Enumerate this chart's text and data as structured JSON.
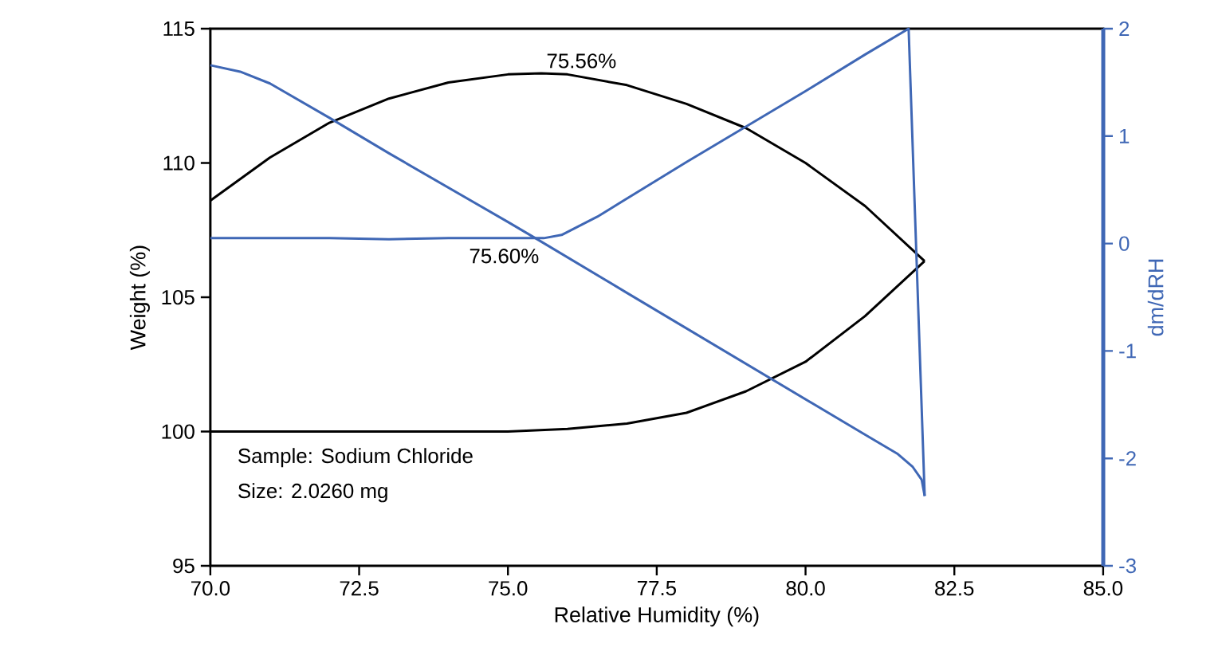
{
  "chart_data": {
    "type": "line",
    "xlabel": "Relative Humidity (%)",
    "ylabel": "Weight (%)",
    "y2label": "dm/dRH",
    "xlim": [
      70,
      85
    ],
    "xticks": [
      {
        "value": 70,
        "label": "70.0"
      },
      {
        "value": 72.5,
        "label": "72.5"
      },
      {
        "value": 75,
        "label": "75.0"
      },
      {
        "value": 77.5,
        "label": "77.5"
      },
      {
        "value": 80,
        "label": "80.0"
      },
      {
        "value": 82.5,
        "label": "82.5"
      },
      {
        "value": 85,
        "label": "85.0"
      }
    ],
    "ylim": [
      95,
      115
    ],
    "yticks": [
      95,
      100,
      105,
      110,
      115
    ],
    "y2lim": [
      -3,
      2
    ],
    "y2ticks": [
      -3,
      -2,
      -1,
      0,
      1,
      2
    ],
    "series": [
      {
        "color": "#000000",
        "x": [
          70,
          71,
          72,
          73,
          74,
          75,
          75.56,
          76,
          77,
          78,
          79,
          80,
          81,
          82
        ],
        "values": [
          108.6,
          110.2,
          111.5,
          112.4,
          113.0,
          113.3,
          113.34,
          113.3,
          112.9,
          112.2,
          111.3,
          110.0,
          108.4,
          106.35
        ]
      },
      {
        "color": "#000000",
        "x": [
          70,
          72,
          74,
          75,
          76,
          77,
          78,
          79,
          80,
          81,
          82
        ],
        "values": [
          100,
          100,
          100,
          100,
          100.1,
          100.3,
          100.7,
          101.5,
          102.6,
          104.3,
          106.35
        ]
      },
      {
        "color": "#3f67b5",
        "axis": "y2",
        "x": [
          70,
          70.5,
          71,
          72,
          73,
          74,
          75,
          75.46,
          77,
          79,
          81,
          81.55,
          81.8,
          81.95,
          82
        ],
        "values": [
          1.66,
          1.6,
          1.49,
          1.17,
          0.84,
          0.52,
          0.2,
          0.05,
          -0.46,
          -1.12,
          -1.78,
          -1.96,
          -2.08,
          -2.2,
          -2.35
        ]
      },
      {
        "color": "#3f67b5",
        "axis": "y2",
        "x": [
          70,
          72,
          73,
          74,
          75,
          75.6,
          75.9,
          76.5,
          78,
          79,
          80,
          81,
          81.73,
          82
        ],
        "values": [
          0.05,
          0.05,
          0.04,
          0.05,
          0.05,
          0.05,
          0.08,
          0.25,
          0.76,
          1.09,
          1.42,
          1.76,
          2.0,
          -2.35
        ]
      }
    ],
    "annotations": [
      {
        "text": "75.56%",
        "x": 75.56,
        "y": 113.34
      },
      "75.60%",
      "Sample: Sodium Chloride",
      "Size: 2.0260 mg"
    ]
  }
}
